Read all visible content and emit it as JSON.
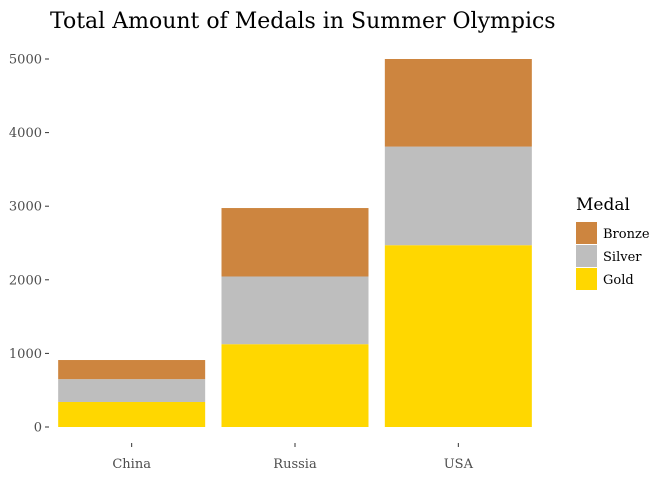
{
  "chart_data": {
    "type": "bar",
    "stacked": true,
    "title": "Total Amount of Medals in Summer Olympics",
    "xlabel": "",
    "ylabel": "",
    "categories": [
      "China",
      "Russia",
      "USA"
    ],
    "series": [
      {
        "name": "Gold",
        "color": "#FFD700",
        "values": [
          340,
          1125,
          2470
        ]
      },
      {
        "name": "Silver",
        "color": "#BEBEBE",
        "values": [
          310,
          920,
          1340
        ]
      },
      {
        "name": "Bronze",
        "color": "#CD853F",
        "values": [
          260,
          930,
          1190
        ]
      }
    ],
    "ylim": [
      0,
      5000
    ],
    "yticks": [
      0,
      1000,
      2000,
      3000,
      4000,
      5000
    ],
    "ytick_labels": [
      "0",
      "1000",
      "2000",
      "3000",
      "4000",
      "5000"
    ],
    "grid": false,
    "legend": {
      "title": "Medal",
      "placement": "right",
      "order": [
        "Bronze",
        "Silver",
        "Gold"
      ]
    }
  }
}
